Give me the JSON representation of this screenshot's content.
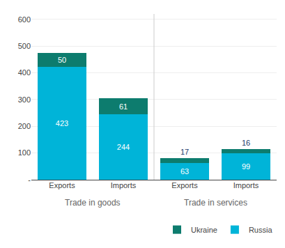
{
  "chart_data": {
    "type": "bar",
    "categories": [
      "Exports",
      "Imports",
      "Exports",
      "Imports"
    ],
    "annotations": [
      "Trade in goods",
      "Trade in services"
    ],
    "series": [
      {
        "name": "Russia",
        "color": "#00B4D8",
        "values": [
          423,
          244,
          63,
          99
        ]
      },
      {
        "name": "Ukraine",
        "color": "#0D7C6E",
        "values": [
          50,
          61,
          17,
          16
        ]
      }
    ],
    "stacked": true,
    "data_labels": true,
    "ylim": [
      0,
      620
    ],
    "yticks": [
      {
        "value": 0,
        "label": "-"
      },
      100,
      200,
      300,
      400,
      500,
      600
    ],
    "grid": true,
    "legend": "lower right"
  }
}
